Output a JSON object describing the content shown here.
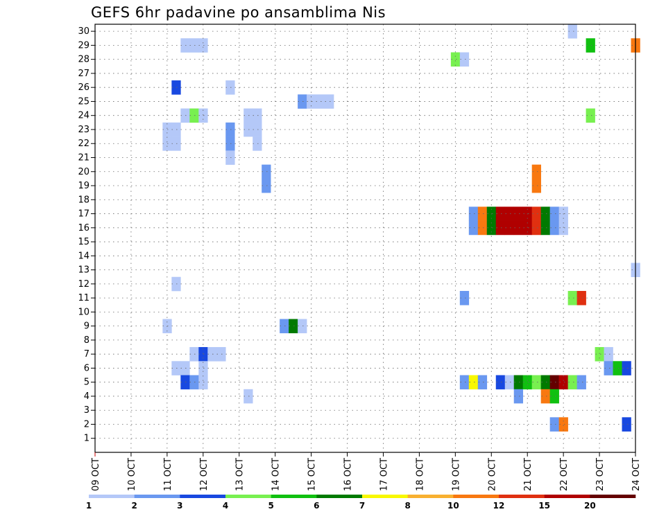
{
  "chart_data": {
    "type": "heatmap",
    "title": "GEFS 6hr padavine po ansamblima Nis",
    "xlabel": "",
    "ylabel": "",
    "x_tick_labels": [
      "09 OCT",
      "10 OCT",
      "11 OCT",
      "12 OCT",
      "13 OCT",
      "14 OCT",
      "15 OCT",
      "16 OCT",
      "17 OCT",
      "18 OCT",
      "19 OCT",
      "20 OCT",
      "21 OCT",
      "22 OCT",
      "23 OCT",
      "24 OCT"
    ],
    "x_range_days": [
      0,
      15
    ],
    "y_range": [
      0,
      30
    ],
    "y_ticks": [
      1,
      2,
      3,
      4,
      5,
      6,
      7,
      8,
      9,
      10,
      11,
      12,
      13,
      14,
      15,
      16,
      17,
      18,
      19,
      20,
      21,
      22,
      23,
      24,
      25,
      26,
      27,
      28,
      29,
      30
    ],
    "grid": true,
    "legend_position": "bottom",
    "color_scale": {
      "labels": [
        "1",
        "2",
        "3",
        "4",
        "5",
        "6",
        "7",
        "8",
        "10",
        "12",
        "15",
        "20"
      ],
      "colors": [
        "#b4c8f8",
        "#6a98f0",
        "#1848e0",
        "#78f050",
        "#10c010",
        "#007a00",
        "#f8f800",
        "#f8b030",
        "#f87810",
        "#e03010",
        "#b00000",
        "#640000"
      ]
    },
    "cells": [
      {
        "day": 13.25,
        "member": 30,
        "bin": 0
      },
      {
        "day": 2.5,
        "member": 29,
        "bin": 0
      },
      {
        "day": 2.75,
        "member": 29,
        "bin": 0
      },
      {
        "day": 3.0,
        "member": 29,
        "bin": 0
      },
      {
        "day": 13.75,
        "member": 29,
        "bin": 4
      },
      {
        "day": 15.0,
        "member": 29,
        "bin": 8
      },
      {
        "day": 10.0,
        "member": 28,
        "bin": 3
      },
      {
        "day": 10.25,
        "member": 28,
        "bin": 0
      },
      {
        "day": 2.25,
        "member": 26,
        "bin": 2
      },
      {
        "day": 3.75,
        "member": 26,
        "bin": 0
      },
      {
        "day": 5.75,
        "member": 25,
        "bin": 1
      },
      {
        "day": 6.0,
        "member": 25,
        "bin": 0
      },
      {
        "day": 6.25,
        "member": 25,
        "bin": 0
      },
      {
        "day": 6.5,
        "member": 25,
        "bin": 0
      },
      {
        "day": 2.5,
        "member": 24,
        "bin": 0
      },
      {
        "day": 2.75,
        "member": 24,
        "bin": 3
      },
      {
        "day": 3.0,
        "member": 24,
        "bin": 0
      },
      {
        "day": 4.25,
        "member": 24,
        "bin": 0
      },
      {
        "day": 4.5,
        "member": 24,
        "bin": 0
      },
      {
        "day": 13.75,
        "member": 24,
        "bin": 3
      },
      {
        "day": 2.0,
        "member": 23,
        "bin": 0
      },
      {
        "day": 2.25,
        "member": 23,
        "bin": 0
      },
      {
        "day": 3.75,
        "member": 23,
        "bin": 1
      },
      {
        "day": 4.25,
        "member": 23,
        "bin": 0
      },
      {
        "day": 4.5,
        "member": 23,
        "bin": 0
      },
      {
        "day": 2.0,
        "member": 22,
        "bin": 0
      },
      {
        "day": 2.25,
        "member": 22,
        "bin": 0
      },
      {
        "day": 3.75,
        "member": 22,
        "bin": 1
      },
      {
        "day": 4.5,
        "member": 22,
        "bin": 0
      },
      {
        "day": 3.75,
        "member": 21,
        "bin": 0
      },
      {
        "day": 4.75,
        "member": 20,
        "bin": 1
      },
      {
        "day": 12.25,
        "member": 20,
        "bin": 8
      },
      {
        "day": 4.75,
        "member": 19,
        "bin": 1
      },
      {
        "day": 12.25,
        "member": 19,
        "bin": 8
      },
      {
        "day": 10.5,
        "member": 17,
        "bin": 1
      },
      {
        "day": 10.75,
        "member": 17,
        "bin": 8
      },
      {
        "day": 11.0,
        "member": 17,
        "bin": 5
      },
      {
        "day": 11.25,
        "member": 17,
        "bin": 10
      },
      {
        "day": 11.5,
        "member": 17,
        "bin": 10
      },
      {
        "day": 11.75,
        "member": 17,
        "bin": 10
      },
      {
        "day": 12.0,
        "member": 17,
        "bin": 10
      },
      {
        "day": 12.25,
        "member": 17,
        "bin": 9
      },
      {
        "day": 12.5,
        "member": 17,
        "bin": 5
      },
      {
        "day": 12.75,
        "member": 17,
        "bin": 1
      },
      {
        "day": 13.0,
        "member": 17,
        "bin": 0
      },
      {
        "day": 10.5,
        "member": 16,
        "bin": 1
      },
      {
        "day": 10.75,
        "member": 16,
        "bin": 8
      },
      {
        "day": 11.0,
        "member": 16,
        "bin": 5
      },
      {
        "day": 11.25,
        "member": 16,
        "bin": 10
      },
      {
        "day": 11.5,
        "member": 16,
        "bin": 10
      },
      {
        "day": 11.75,
        "member": 16,
        "bin": 10
      },
      {
        "day": 12.0,
        "member": 16,
        "bin": 10
      },
      {
        "day": 12.25,
        "member": 16,
        "bin": 9
      },
      {
        "day": 12.5,
        "member": 16,
        "bin": 5
      },
      {
        "day": 12.75,
        "member": 16,
        "bin": 1
      },
      {
        "day": 13.0,
        "member": 16,
        "bin": 0
      },
      {
        "day": 15.0,
        "member": 13,
        "bin": 0
      },
      {
        "day": 2.25,
        "member": 12,
        "bin": 0
      },
      {
        "day": 10.25,
        "member": 11,
        "bin": 1
      },
      {
        "day": 13.25,
        "member": 11,
        "bin": 3
      },
      {
        "day": 13.5,
        "member": 11,
        "bin": 9
      },
      {
        "day": 2.0,
        "member": 9,
        "bin": 0
      },
      {
        "day": 5.25,
        "member": 9,
        "bin": 1
      },
      {
        "day": 5.5,
        "member": 9,
        "bin": 5
      },
      {
        "day": 5.75,
        "member": 9,
        "bin": 0
      },
      {
        "day": 2.75,
        "member": 7,
        "bin": 0
      },
      {
        "day": 3.0,
        "member": 7,
        "bin": 2
      },
      {
        "day": 3.25,
        "member": 7,
        "bin": 0
      },
      {
        "day": 3.5,
        "member": 7,
        "bin": 0
      },
      {
        "day": 14.0,
        "member": 7,
        "bin": 3
      },
      {
        "day": 14.25,
        "member": 7,
        "bin": 0
      },
      {
        "day": 2.25,
        "member": 6,
        "bin": 0
      },
      {
        "day": 2.5,
        "member": 6,
        "bin": 0
      },
      {
        "day": 3.0,
        "member": 6,
        "bin": 0
      },
      {
        "day": 14.25,
        "member": 6,
        "bin": 1
      },
      {
        "day": 14.5,
        "member": 6,
        "bin": 4
      },
      {
        "day": 14.75,
        "member": 6,
        "bin": 2
      },
      {
        "day": 2.5,
        "member": 5,
        "bin": 2
      },
      {
        "day": 2.75,
        "member": 5,
        "bin": 1
      },
      {
        "day": 3.0,
        "member": 5,
        "bin": 0
      },
      {
        "day": 10.25,
        "member": 5,
        "bin": 1
      },
      {
        "day": 10.5,
        "member": 5,
        "bin": 6
      },
      {
        "day": 10.75,
        "member": 5,
        "bin": 1
      },
      {
        "day": 11.25,
        "member": 5,
        "bin": 2
      },
      {
        "day": 11.5,
        "member": 5,
        "bin": 0
      },
      {
        "day": 11.75,
        "member": 5,
        "bin": 5
      },
      {
        "day": 12.0,
        "member": 5,
        "bin": 4
      },
      {
        "day": 12.25,
        "member": 5,
        "bin": 3
      },
      {
        "day": 12.5,
        "member": 5,
        "bin": 5
      },
      {
        "day": 12.75,
        "member": 5,
        "bin": 11
      },
      {
        "day": 13.0,
        "member": 5,
        "bin": 10
      },
      {
        "day": 13.25,
        "member": 5,
        "bin": 3
      },
      {
        "day": 13.5,
        "member": 5,
        "bin": 1
      },
      {
        "day": 4.25,
        "member": 4,
        "bin": 0
      },
      {
        "day": 11.75,
        "member": 4,
        "bin": 1
      },
      {
        "day": 12.5,
        "member": 4,
        "bin": 8
      },
      {
        "day": 12.75,
        "member": 4,
        "bin": 4
      },
      {
        "day": 12.75,
        "member": 2,
        "bin": 1
      },
      {
        "day": 13.0,
        "member": 2,
        "bin": 8
      },
      {
        "day": 14.75,
        "member": 2,
        "bin": 2
      }
    ]
  }
}
